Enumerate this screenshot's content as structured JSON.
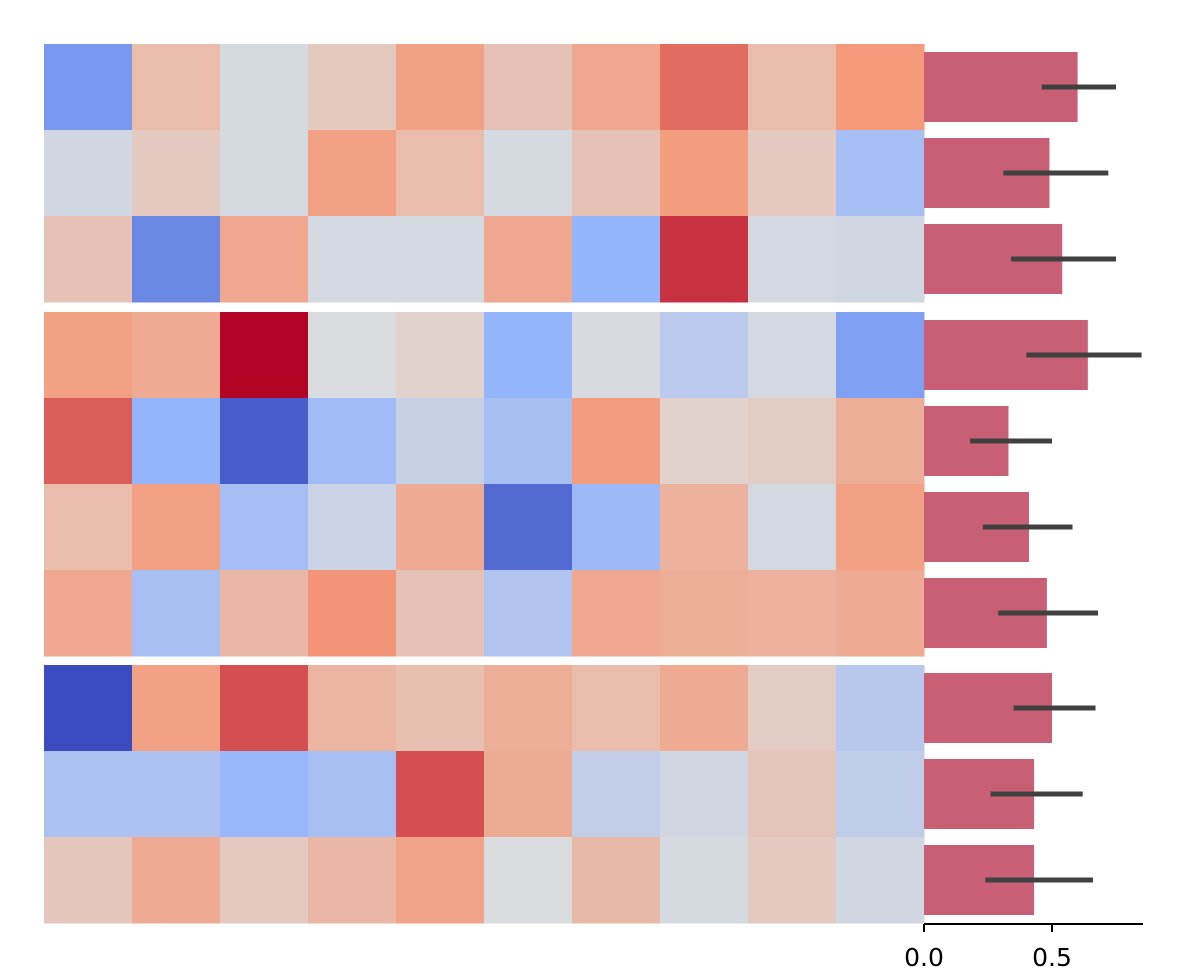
{
  "chart_data": [
    {
      "type": "heatmap",
      "title": "",
      "xlabel": "",
      "ylabel": "",
      "n_rows": 10,
      "n_cols": 10,
      "row_groups": [
        [
          0,
          1,
          2
        ],
        [
          3,
          4,
          5,
          6
        ],
        [
          7,
          8,
          9
        ]
      ],
      "colormap": "coolwarm",
      "value_range": [
        -1,
        1
      ],
      "values": [
        [
          -0.62,
          0.25,
          -0.05,
          0.15,
          0.45,
          0.2,
          0.4,
          0.65,
          0.25,
          0.5
        ],
        [
          -0.08,
          0.15,
          -0.05,
          0.45,
          0.25,
          -0.05,
          0.2,
          0.48,
          0.15,
          -0.35
        ],
        [
          0.2,
          -0.7,
          0.4,
          -0.06,
          -0.06,
          0.4,
          -0.45,
          0.85,
          -0.06,
          -0.08
        ],
        [
          0.45,
          0.38,
          1.0,
          -0.02,
          0.08,
          -0.45,
          -0.03,
          -0.22,
          -0.06,
          -0.58
        ],
        [
          0.7,
          -0.45,
          -0.92,
          -0.38,
          -0.15,
          -0.34,
          0.48,
          0.08,
          0.13,
          0.35
        ],
        [
          0.25,
          0.45,
          -0.35,
          -0.12,
          0.38,
          -0.85,
          -0.4,
          0.32,
          -0.06,
          0.45
        ],
        [
          0.4,
          -0.33,
          0.28,
          0.52,
          0.2,
          -0.28,
          0.4,
          0.35,
          0.33,
          0.38
        ],
        [
          -1.0,
          0.45,
          0.75,
          0.3,
          0.22,
          0.35,
          0.25,
          0.38,
          0.13,
          -0.23
        ],
        [
          -0.3,
          -0.3,
          -0.42,
          -0.33,
          0.75,
          0.37,
          -0.17,
          -0.08,
          0.18,
          -0.18
        ],
        [
          0.17,
          0.38,
          0.15,
          0.28,
          0.43,
          -0.02,
          0.27,
          -0.05,
          0.15,
          -0.08
        ]
      ]
    },
    {
      "type": "bar",
      "orientation": "horizontal",
      "title": "",
      "xlabel": "",
      "ylabel": "",
      "xlim": [
        0,
        0.87
      ],
      "xticks": [
        0.0,
        0.5
      ],
      "xtick_labels": [
        "0.0",
        "0.5"
      ],
      "values": [
        0.6,
        0.49,
        0.54,
        0.64,
        0.33,
        0.41,
        0.48,
        0.5,
        0.43,
        0.43
      ],
      "error_low": [
        0.46,
        0.31,
        0.34,
        0.4,
        0.18,
        0.23,
        0.29,
        0.35,
        0.26,
        0.24
      ],
      "error_high": [
        0.75,
        0.72,
        0.75,
        0.85,
        0.5,
        0.58,
        0.68,
        0.67,
        0.62,
        0.66
      ],
      "bar_color": "#c95f74",
      "error_color": "#404040"
    }
  ]
}
